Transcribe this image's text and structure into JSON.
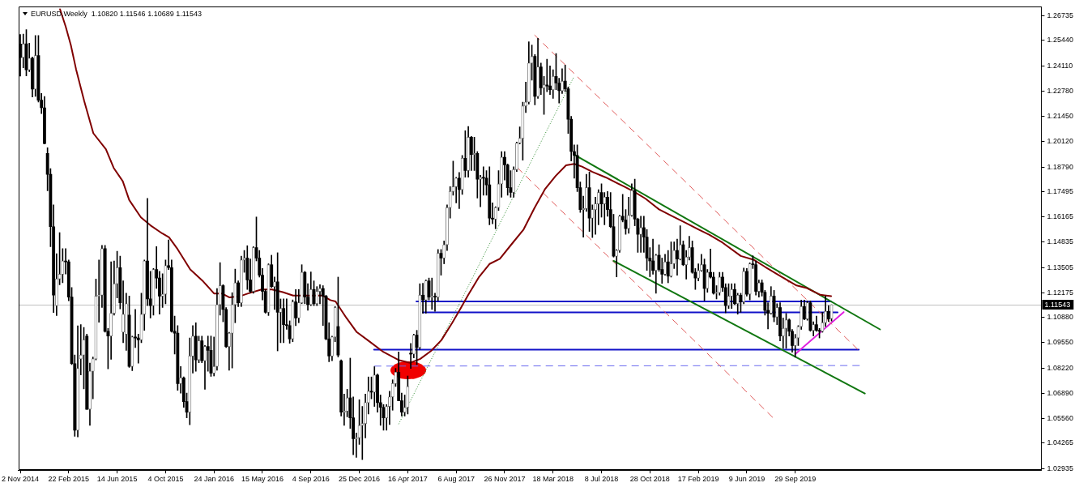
{
  "chart_data": {
    "type": "candlestick",
    "title": "EURUSD,Weekly  1.10820 1.11546 1.10689 1.11543",
    "x": [
      "2014-11-02",
      "2014-11-09",
      "2014-11-16",
      "2014-11-23",
      "2014-11-30",
      "2014-12-07",
      "2014-12-14",
      "2014-12-21",
      "2014-12-28",
      "2015-01-04",
      "2015-01-11",
      "2015-01-18",
      "2015-01-25",
      "2015-02-01",
      "2015-02-08",
      "2015-02-15",
      "2015-02-22",
      "2015-03-01",
      "2015-03-08",
      "2015-03-15",
      "2015-03-22",
      "2015-03-29",
      "2015-04-05",
      "2015-04-12",
      "2015-04-19",
      "2015-04-26",
      "2015-05-03",
      "2015-05-10",
      "2015-05-17",
      "2015-05-24",
      "2015-05-31",
      "2015-06-07",
      "2015-06-14",
      "2015-06-21",
      "2015-06-28",
      "2015-07-05",
      "2015-07-12",
      "2015-07-19",
      "2015-07-26",
      "2015-08-02",
      "2015-08-09",
      "2015-08-16",
      "2015-08-23",
      "2015-08-30",
      "2015-09-06",
      "2015-09-13",
      "2015-09-20",
      "2015-09-27",
      "2015-10-04",
      "2015-10-11",
      "2015-10-18",
      "2015-10-25",
      "2015-11-01",
      "2015-11-08",
      "2015-11-15",
      "2015-11-22",
      "2015-11-29",
      "2015-12-06",
      "2015-12-13",
      "2015-12-20",
      "2015-12-27",
      "2016-01-03",
      "2016-01-10",
      "2016-01-17",
      "2016-01-24",
      "2016-01-31",
      "2016-02-07",
      "2016-02-14",
      "2016-02-21",
      "2016-02-28",
      "2016-03-06",
      "2016-03-13",
      "2016-03-20",
      "2016-03-27",
      "2016-04-03",
      "2016-04-10",
      "2016-04-17",
      "2016-04-24",
      "2016-05-01",
      "2016-05-08",
      "2016-05-15",
      "2016-05-22",
      "2016-05-29",
      "2016-06-05",
      "2016-06-12",
      "2016-06-19",
      "2016-06-26",
      "2016-07-03",
      "2016-07-10",
      "2016-07-17",
      "2016-07-24",
      "2016-07-31",
      "2016-08-07",
      "2016-08-14",
      "2016-08-21",
      "2016-08-28",
      "2016-09-04",
      "2016-09-11",
      "2016-09-18",
      "2016-09-25",
      "2016-10-02",
      "2016-10-09",
      "2016-10-16",
      "2016-10-23",
      "2016-10-30",
      "2016-11-06",
      "2016-11-13",
      "2016-11-20",
      "2016-11-27",
      "2016-12-04",
      "2016-12-11",
      "2016-12-18",
      "2016-12-25",
      "2017-01-01",
      "2017-01-08",
      "2017-01-15",
      "2017-01-22",
      "2017-01-29",
      "2017-02-05",
      "2017-02-12",
      "2017-02-19",
      "2017-02-26",
      "2017-03-05",
      "2017-03-12",
      "2017-03-19",
      "2017-03-26",
      "2017-04-02",
      "2017-04-09",
      "2017-04-16",
      "2017-04-23",
      "2017-04-30",
      "2017-05-07",
      "2017-05-14",
      "2017-05-21",
      "2017-05-28",
      "2017-06-04",
      "2017-06-11",
      "2017-06-18",
      "2017-06-25",
      "2017-07-02",
      "2017-07-09",
      "2017-07-16",
      "2017-07-23",
      "2017-07-30",
      "2017-08-06",
      "2017-08-13",
      "2017-08-20",
      "2017-08-27",
      "2017-09-03",
      "2017-09-10",
      "2017-09-17",
      "2017-09-24",
      "2017-10-01",
      "2017-10-08",
      "2017-10-15",
      "2017-10-22",
      "2017-10-29",
      "2017-11-05",
      "2017-11-12",
      "2017-11-19",
      "2017-11-26",
      "2017-12-03",
      "2017-12-10",
      "2017-12-17",
      "2017-12-24",
      "2017-12-31",
      "2018-01-07",
      "2018-01-14",
      "2018-01-21",
      "2018-01-28",
      "2018-02-04",
      "2018-02-11",
      "2018-02-18",
      "2018-02-25",
      "2018-03-04",
      "2018-03-11",
      "2018-03-18",
      "2018-03-25",
      "2018-04-01",
      "2018-04-08",
      "2018-04-15",
      "2018-04-22",
      "2018-04-29",
      "2018-05-06",
      "2018-05-13",
      "2018-05-20",
      "2018-05-27",
      "2018-06-03",
      "2018-06-10",
      "2018-06-17",
      "2018-06-24",
      "2018-07-01",
      "2018-07-08",
      "2018-07-15",
      "2018-07-22",
      "2018-07-29",
      "2018-08-05",
      "2018-08-12",
      "2018-08-19",
      "2018-08-26",
      "2018-09-02",
      "2018-09-09",
      "2018-09-16",
      "2018-09-23",
      "2018-09-30",
      "2018-10-07",
      "2018-10-14",
      "2018-10-21",
      "2018-10-28",
      "2018-11-04",
      "2018-11-11",
      "2018-11-18",
      "2018-11-25",
      "2018-12-02",
      "2018-12-09",
      "2018-12-16",
      "2018-12-23",
      "2018-12-30",
      "2019-01-06",
      "2019-01-13",
      "2019-01-20",
      "2019-01-27",
      "2019-02-03",
      "2019-02-10",
      "2019-02-17",
      "2019-02-24",
      "2019-03-03",
      "2019-03-10",
      "2019-03-17",
      "2019-03-24",
      "2019-03-31",
      "2019-04-07",
      "2019-04-14",
      "2019-04-21",
      "2019-04-28",
      "2019-05-05",
      "2019-05-12",
      "2019-05-19",
      "2019-05-26",
      "2019-06-02",
      "2019-06-09",
      "2019-06-16",
      "2019-06-23",
      "2019-06-30",
      "2019-07-07",
      "2019-07-14",
      "2019-07-21",
      "2019-07-28",
      "2019-08-04",
      "2019-08-11",
      "2019-08-18",
      "2019-08-25",
      "2019-09-01",
      "2019-09-08",
      "2019-09-15",
      "2019-09-22",
      "2019-09-29",
      "2019-10-06",
      "2019-10-13",
      "2019-10-20",
      "2019-10-27",
      "2019-11-03",
      "2019-11-10",
      "2019-11-17",
      "2019-11-24",
      "2019-12-01",
      "2019-12-08",
      "2019-12-15",
      "2019-12-22"
    ],
    "ohlc": [
      [
        1.2525,
        1.2575,
        1.2357,
        1.2455
      ],
      [
        1.2455,
        1.2577,
        1.24,
        1.2526
      ],
      [
        1.2526,
        1.2601,
        1.2358,
        1.239
      ],
      [
        1.239,
        1.253,
        1.238,
        1.2451
      ],
      [
        1.2451,
        1.2457,
        1.2247,
        1.2288
      ],
      [
        1.2288,
        1.257,
        1.225,
        1.2465
      ],
      [
        1.2465,
        1.257,
        1.222,
        1.223
      ],
      [
        1.223,
        1.2265,
        1.216,
        1.219
      ],
      [
        1.219,
        1.225,
        1.2,
        1.2002
      ],
      [
        1.195,
        1.198,
        1.1754,
        1.184
      ],
      [
        1.184,
        1.187,
        1.146,
        1.1565
      ],
      [
        1.1565,
        1.168,
        1.1114,
        1.1205
      ],
      [
        1.115,
        1.1423,
        1.1098,
        1.129
      ],
      [
        1.129,
        1.1534,
        1.126,
        1.1315
      ],
      [
        1.1315,
        1.145,
        1.127,
        1.1385
      ],
      [
        1.1385,
        1.145,
        1.1316,
        1.138
      ],
      [
        1.138,
        1.139,
        1.1175,
        1.1195
      ],
      [
        1.1195,
        1.1245,
        1.084,
        1.0845
      ],
      [
        1.0845,
        1.089,
        1.0463,
        1.0495
      ],
      [
        1.0495,
        1.1044,
        1.046,
        1.082
      ],
      [
        1.087,
        1.105,
        1.0786,
        1.089
      ],
      [
        1.089,
        1.1035,
        1.0712,
        1.097
      ],
      [
        1.099,
        1.1,
        1.0605,
        1.0605
      ],
      [
        1.0605,
        1.0848,
        1.052,
        1.0805
      ],
      [
        1.0805,
        1.088,
        1.066,
        1.087
      ],
      [
        1.087,
        1.129,
        1.0865,
        1.12
      ],
      [
        1.12,
        1.139,
        1.1063,
        1.1205
      ],
      [
        1.1205,
        1.1467,
        1.114,
        1.145
      ],
      [
        1.145,
        1.1467,
        1.101,
        1.1015
      ],
      [
        1.1015,
        1.103,
        1.0818,
        1.099
      ],
      [
        1.099,
        1.138,
        1.0868,
        1.111
      ],
      [
        1.111,
        1.1385,
        1.11,
        1.1265
      ],
      [
        1.1265,
        1.1436,
        1.119,
        1.135
      ],
      [
        1.135,
        1.141,
        1.1133,
        1.1165
      ],
      [
        1.101,
        1.128,
        1.0955,
        1.1105
      ],
      [
        1.1,
        1.1215,
        1.0915,
        1.116
      ],
      [
        1.11,
        1.12,
        1.0825,
        1.083
      ],
      [
        1.083,
        1.099,
        1.0808,
        1.0985
      ],
      [
        1.0985,
        1.113,
        1.093,
        1.098
      ],
      [
        1.098,
        1.1,
        1.0848,
        1.097
      ],
      [
        1.097,
        1.1215,
        1.0955,
        1.1105
      ],
      [
        1.1105,
        1.139,
        1.102,
        1.1385
      ],
      [
        1.1385,
        1.1714,
        1.115,
        1.1185
      ],
      [
        1.1185,
        1.133,
        1.1085,
        1.115
      ],
      [
        1.115,
        1.1345,
        1.11,
        1.134
      ],
      [
        1.134,
        1.146,
        1.124,
        1.1295
      ],
      [
        1.1295,
        1.133,
        1.1105,
        1.12
      ],
      [
        1.12,
        1.1318,
        1.114,
        1.121
      ],
      [
        1.121,
        1.139,
        1.116,
        1.136
      ],
      [
        1.136,
        1.1495,
        1.134,
        1.135
      ],
      [
        1.135,
        1.139,
        1.101,
        1.1015
      ],
      [
        1.1015,
        1.1095,
        1.0895,
        1.1005
      ],
      [
        1.1005,
        1.1045,
        1.0705,
        1.074
      ],
      [
        1.074,
        1.083,
        1.069,
        1.077
      ],
      [
        1.077,
        1.0775,
        1.0615,
        1.0645
      ],
      [
        1.0645,
        1.069,
        1.056,
        1.059
      ],
      [
        1.059,
        1.098,
        1.0524,
        1.0885
      ],
      [
        1.0885,
        1.1045,
        1.0795,
        1.099
      ],
      [
        1.099,
        1.106,
        1.0805,
        1.0865
      ],
      [
        1.0865,
        1.099,
        1.085,
        1.0965
      ],
      [
        1.0965,
        1.099,
        1.085,
        1.086
      ],
      [
        1.086,
        1.094,
        1.071,
        1.0935
      ],
      [
        1.0935,
        1.099,
        1.0805,
        1.0915
      ],
      [
        1.0915,
        1.099,
        1.0778,
        1.0795
      ],
      [
        1.0795,
        1.0985,
        1.078,
        1.083
      ],
      [
        1.083,
        1.124,
        1.081,
        1.1155
      ],
      [
        1.1155,
        1.1376,
        1.11,
        1.1255
      ],
      [
        1.1255,
        1.126,
        1.1065,
        1.113
      ],
      [
        1.113,
        1.114,
        1.093,
        1.0935
      ],
      [
        1.0935,
        1.101,
        1.081,
        1.1005
      ],
      [
        1.1005,
        1.1218,
        1.0822,
        1.1155
      ],
      [
        1.1155,
        1.1342,
        1.106,
        1.127
      ],
      [
        1.127,
        1.128,
        1.1145,
        1.1165
      ],
      [
        1.1165,
        1.141,
        1.1145,
        1.139
      ],
      [
        1.139,
        1.144,
        1.1325,
        1.14
      ],
      [
        1.14,
        1.1465,
        1.1235,
        1.1285
      ],
      [
        1.1285,
        1.1395,
        1.1218,
        1.1225
      ],
      [
        1.1225,
        1.146,
        1.1215,
        1.1455
      ],
      [
        1.1455,
        1.1616,
        1.1385,
        1.14
      ],
      [
        1.14,
        1.144,
        1.13,
        1.131
      ],
      [
        1.131,
        1.1345,
        1.118,
        1.1225
      ],
      [
        1.1225,
        1.1235,
        1.111,
        1.1115
      ],
      [
        1.1115,
        1.137,
        1.1098,
        1.1365
      ],
      [
        1.1365,
        1.1415,
        1.1245,
        1.125
      ],
      [
        1.125,
        1.13,
        1.113,
        1.1275
      ],
      [
        1.1275,
        1.1428,
        1.0912,
        1.1115
      ],
      [
        1.1115,
        1.1185,
        1.0955,
        1.1135
      ],
      [
        1.1135,
        1.1185,
        1.0955,
        1.105
      ],
      [
        1.105,
        1.1185,
        1.1025,
        1.1045
      ],
      [
        1.1045,
        1.107,
        1.0952,
        1.0975
      ],
      [
        1.0975,
        1.118,
        1.096,
        1.117
      ],
      [
        1.117,
        1.1235,
        1.1045,
        1.1085
      ],
      [
        1.1085,
        1.1235,
        1.106,
        1.1165
      ],
      [
        1.1165,
        1.1365,
        1.116,
        1.1325
      ],
      [
        1.1325,
        1.133,
        1.116,
        1.1195
      ],
      [
        1.1195,
        1.1265,
        1.1125,
        1.1155
      ],
      [
        1.1155,
        1.1327,
        1.115,
        1.1235
      ],
      [
        1.1235,
        1.128,
        1.115,
        1.116
      ],
      [
        1.116,
        1.125,
        1.115,
        1.1225
      ],
      [
        1.1225,
        1.126,
        1.116,
        1.124
      ],
      [
        1.124,
        1.1255,
        1.1045,
        1.12
      ],
      [
        1.12,
        1.1205,
        1.097,
        1.0975
      ],
      [
        1.0975,
        1.106,
        1.0855,
        1.0885
      ],
      [
        1.0885,
        1.099,
        1.086,
        1.0985
      ],
      [
        1.0985,
        1.1145,
        1.096,
        1.114
      ],
      [
        1.104,
        1.13,
        1.088,
        1.089
      ],
      [
        1.086,
        1.0865,
        1.057,
        1.059
      ],
      [
        1.059,
        1.0685,
        1.052,
        1.0595
      ],
      [
        1.0595,
        1.071,
        1.0565,
        1.0665
      ],
      [
        1.0665,
        1.0874,
        1.0505,
        1.056
      ],
      [
        1.056,
        1.067,
        1.0366,
        1.045
      ],
      [
        1.045,
        1.048,
        1.0352,
        1.0455
      ],
      [
        1.0455,
        1.0655,
        1.042,
        1.052
      ],
      [
        1.052,
        1.062,
        1.034,
        1.053
      ],
      [
        1.053,
        1.0685,
        1.0455,
        1.064
      ],
      [
        1.064,
        1.0775,
        1.058,
        1.07
      ],
      [
        1.07,
        1.0775,
        1.066,
        1.0695
      ],
      [
        1.0695,
        1.0829,
        1.062,
        1.0785
      ],
      [
        1.0785,
        1.079,
        1.059,
        1.064
      ],
      [
        1.064,
        1.068,
        1.052,
        1.0615
      ],
      [
        1.0615,
        1.063,
        1.0495,
        1.056
      ],
      [
        1.056,
        1.063,
        1.0495,
        1.062
      ],
      [
        1.062,
        1.07,
        1.0525,
        1.067
      ],
      [
        1.067,
        1.076,
        1.06,
        1.074
      ],
      [
        1.074,
        1.082,
        1.0725,
        1.08
      ],
      [
        1.08,
        1.0906,
        1.065,
        1.065
      ],
      [
        1.065,
        1.069,
        1.057,
        1.059
      ],
      [
        1.059,
        1.068,
        1.057,
        1.0615
      ],
      [
        1.0615,
        1.078,
        1.058,
        1.0725
      ],
      [
        1.09,
        1.0951,
        1.082,
        1.0895
      ],
      [
        1.0895,
        1.1,
        1.0875,
        1.0995
      ],
      [
        1.0995,
        1.102,
        1.084,
        1.093
      ],
      [
        1.093,
        1.1265,
        1.092,
        1.1205
      ],
      [
        1.1205,
        1.1268,
        1.111,
        1.118
      ],
      [
        1.118,
        1.1285,
        1.111,
        1.128
      ],
      [
        1.128,
        1.1295,
        1.118,
        1.1195
      ],
      [
        1.1195,
        1.1295,
        1.113,
        1.1198
      ],
      [
        1.1198,
        1.1215,
        1.112,
        1.1195
      ],
      [
        1.1195,
        1.1445,
        1.1175,
        1.1425
      ],
      [
        1.1425,
        1.1445,
        1.131,
        1.14
      ],
      [
        1.14,
        1.149,
        1.137,
        1.147
      ],
      [
        1.147,
        1.168,
        1.144,
        1.1665
      ],
      [
        1.1665,
        1.1775,
        1.161,
        1.175
      ],
      [
        1.175,
        1.191,
        1.173,
        1.1775
      ],
      [
        1.1775,
        1.1825,
        1.169,
        1.182
      ],
      [
        1.182,
        1.185,
        1.166,
        1.176
      ],
      [
        1.176,
        1.194,
        1.1735,
        1.1925
      ],
      [
        1.1925,
        1.207,
        1.1825,
        1.186
      ],
      [
        1.186,
        1.2092,
        1.1825,
        1.2035
      ],
      [
        1.2035,
        1.204,
        1.186,
        1.1945
      ],
      [
        1.1945,
        1.2035,
        1.186,
        1.195
      ],
      [
        1.195,
        1.196,
        1.1715,
        1.1815
      ],
      [
        1.1815,
        1.1835,
        1.167,
        1.1825
      ],
      [
        1.1825,
        1.188,
        1.173,
        1.182
      ],
      [
        1.182,
        1.186,
        1.173,
        1.1785
      ],
      [
        1.1785,
        1.188,
        1.1575,
        1.161
      ],
      [
        1.161,
        1.169,
        1.158,
        1.1605
      ],
      [
        1.1605,
        1.167,
        1.1554,
        1.1665
      ],
      [
        1.1665,
        1.186,
        1.165,
        1.179
      ],
      [
        1.179,
        1.196,
        1.172,
        1.193
      ],
      [
        1.193,
        1.196,
        1.181,
        1.189
      ],
      [
        1.189,
        1.1895,
        1.173,
        1.177
      ],
      [
        1.177,
        1.186,
        1.172,
        1.1745
      ],
      [
        1.1745,
        1.188,
        1.172,
        1.1865
      ],
      [
        1.1865,
        1.201,
        1.1855,
        1.2005
      ],
      [
        1.2005,
        1.209,
        1.2,
        1.203
      ],
      [
        1.203,
        1.222,
        1.1915,
        1.22
      ],
      [
        1.22,
        1.2325,
        1.2165,
        1.222
      ],
      [
        1.222,
        1.2537,
        1.221,
        1.2425
      ],
      [
        1.2425,
        1.252,
        1.2335,
        1.246
      ],
      [
        1.246,
        1.247,
        1.2205,
        1.225
      ],
      [
        1.225,
        1.2555,
        1.224,
        1.2405
      ],
      [
        1.2405,
        1.2425,
        1.226,
        1.2295
      ],
      [
        1.2295,
        1.2355,
        1.2155,
        1.231
      ],
      [
        1.231,
        1.2445,
        1.2275,
        1.2305
      ],
      [
        1.2305,
        1.241,
        1.226,
        1.2285
      ],
      [
        1.2285,
        1.239,
        1.224,
        1.2355
      ],
      [
        1.2355,
        1.2475,
        1.2285,
        1.232
      ],
      [
        1.232,
        1.2345,
        1.2215,
        1.228
      ],
      [
        1.228,
        1.2395,
        1.2265,
        1.233
      ],
      [
        1.233,
        1.2415,
        1.2275,
        1.229
      ],
      [
        1.229,
        1.23,
        1.2055,
        1.213
      ],
      [
        1.213,
        1.2145,
        1.191,
        1.196
      ],
      [
        1.196,
        1.1995,
        1.182,
        1.194
      ],
      [
        1.194,
        1.1995,
        1.175,
        1.177
      ],
      [
        1.177,
        1.18,
        1.164,
        1.1655
      ],
      [
        1.1655,
        1.1725,
        1.151,
        1.166
      ],
      [
        1.166,
        1.184,
        1.1645,
        1.177
      ],
      [
        1.177,
        1.1852,
        1.154,
        1.161
      ],
      [
        1.161,
        1.168,
        1.1508,
        1.1655
      ],
      [
        1.1655,
        1.172,
        1.1525,
        1.1685
      ],
      [
        1.1685,
        1.176,
        1.1575,
        1.1745
      ],
      [
        1.1745,
        1.179,
        1.1615,
        1.1685
      ],
      [
        1.1685,
        1.1745,
        1.1575,
        1.172
      ],
      [
        1.172,
        1.175,
        1.162,
        1.1655
      ],
      [
        1.1655,
        1.1745,
        1.156,
        1.1565
      ],
      [
        1.1565,
        1.163,
        1.1405,
        1.141
      ],
      [
        1.141,
        1.1445,
        1.1301,
        1.144
      ],
      [
        1.144,
        1.1625,
        1.143,
        1.162
      ],
      [
        1.162,
        1.1735,
        1.159,
        1.16
      ],
      [
        1.16,
        1.1655,
        1.1525,
        1.1555
      ],
      [
        1.1555,
        1.172,
        1.153,
        1.1625
      ],
      [
        1.1625,
        1.179,
        1.162,
        1.1755
      ],
      [
        1.1755,
        1.1815,
        1.157,
        1.1605
      ],
      [
        1.1605,
        1.161,
        1.143,
        1.1525
      ],
      [
        1.1525,
        1.162,
        1.143,
        1.156
      ],
      [
        1.156,
        1.162,
        1.143,
        1.151
      ],
      [
        1.151,
        1.155,
        1.1335,
        1.14
      ],
      [
        1.14,
        1.1455,
        1.1302,
        1.1385
      ],
      [
        1.1385,
        1.15,
        1.1315,
        1.1335
      ],
      [
        1.1335,
        1.142,
        1.1215,
        1.1415
      ],
      [
        1.1415,
        1.147,
        1.133,
        1.134
      ],
      [
        1.134,
        1.14,
        1.1267,
        1.1315
      ],
      [
        1.1315,
        1.142,
        1.131,
        1.138
      ],
      [
        1.138,
        1.144,
        1.127,
        1.1305
      ],
      [
        1.1305,
        1.1485,
        1.13,
        1.137
      ],
      [
        1.137,
        1.1485,
        1.1345,
        1.144
      ],
      [
        1.144,
        1.15,
        1.131,
        1.1395
      ],
      [
        1.1395,
        1.157,
        1.139,
        1.147
      ],
      [
        1.147,
        1.149,
        1.136,
        1.1365
      ],
      [
        1.1365,
        1.144,
        1.129,
        1.1405
      ],
      [
        1.1405,
        1.1515,
        1.139,
        1.1455
      ],
      [
        1.1455,
        1.149,
        1.132,
        1.1325
      ],
      [
        1.1325,
        1.1345,
        1.1235,
        1.1295
      ],
      [
        1.1295,
        1.137,
        1.128,
        1.1335
      ],
      [
        1.1335,
        1.142,
        1.133,
        1.1365
      ],
      [
        1.1365,
        1.1395,
        1.1176,
        1.124
      ],
      [
        1.124,
        1.134,
        1.122,
        1.1325
      ],
      [
        1.1325,
        1.1448,
        1.1295,
        1.13
      ],
      [
        1.13,
        1.1325,
        1.121,
        1.1215
      ],
      [
        1.1215,
        1.1255,
        1.1185,
        1.1218
      ],
      [
        1.1218,
        1.1325,
        1.1205,
        1.13
      ],
      [
        1.13,
        1.1325,
        1.1225,
        1.1245
      ],
      [
        1.1245,
        1.1265,
        1.1112,
        1.115
      ],
      [
        1.115,
        1.1265,
        1.1135,
        1.12
      ],
      [
        1.12,
        1.1265,
        1.1135,
        1.1235
      ],
      [
        1.1235,
        1.1265,
        1.1155,
        1.116
      ],
      [
        1.116,
        1.1215,
        1.1105,
        1.1205
      ],
      [
        1.1205,
        1.1215,
        1.1115,
        1.117
      ],
      [
        1.117,
        1.1347,
        1.116,
        1.133
      ],
      [
        1.133,
        1.1345,
        1.12,
        1.121
      ],
      [
        1.121,
        1.1375,
        1.118,
        1.137
      ],
      [
        1.137,
        1.1412,
        1.1345,
        1.1365
      ],
      [
        1.1365,
        1.1385,
        1.1205,
        1.1225
      ],
      [
        1.1225,
        1.1285,
        1.1195,
        1.127
      ],
      [
        1.127,
        1.1285,
        1.12,
        1.122
      ],
      [
        1.122,
        1.123,
        1.11,
        1.1125
      ],
      [
        1.1125,
        1.1165,
        1.1027,
        1.111
      ],
      [
        1.111,
        1.125,
        1.1105,
        1.12
      ],
      [
        1.12,
        1.123,
        1.1065,
        1.109
      ],
      [
        1.109,
        1.116,
        1.105,
        1.114
      ],
      [
        1.114,
        1.1165,
        1.0965,
        1.099
      ],
      [
        1.099,
        1.1085,
        1.0925,
        1.103
      ],
      [
        1.103,
        1.1109,
        1.0925,
        1.1075
      ],
      [
        1.1075,
        1.108,
        1.099,
        1.1015
      ],
      [
        1.1015,
        1.1025,
        1.0905,
        1.094
      ],
      [
        1.094,
        1.0999,
        1.0879,
        1.098
      ],
      [
        1.098,
        1.1045,
        1.094,
        1.104
      ],
      [
        1.104,
        1.1179,
        1.1025,
        1.1145
      ],
      [
        1.1145,
        1.1179,
        1.1075,
        1.108
      ],
      [
        1.108,
        1.1175,
        1.1073,
        1.1165
      ],
      [
        1.1165,
        1.1175,
        1.1015,
        1.102
      ],
      [
        1.102,
        1.1065,
        1.099,
        1.105
      ],
      [
        1.105,
        1.1095,
        1.1015,
        1.102
      ],
      [
        1.102,
        1.103,
        1.098,
        1.1015
      ],
      [
        1.1015,
        1.1115,
        1.101,
        1.106
      ],
      [
        1.106,
        1.12,
        1.104,
        1.112
      ],
      [
        1.112,
        1.115,
        1.1066,
        1.108
      ],
      [
        1.1082,
        1.11546,
        1.10689,
        1.11543
      ]
    ],
    "series": [
      {
        "type": "line",
        "color": "#800000",
        "line_style": "solid",
        "x": [
          "2015-02-02",
          "2015-02-15",
          "2015-02-27",
          "2015-03-11",
          "2015-03-30",
          "2015-04-20",
          "2015-05-19",
          "2015-06-06",
          "2015-06-27",
          "2015-07-12",
          "2015-08-08",
          "2015-08-30",
          "2015-09-26",
          "2015-10-12",
          "2015-10-30",
          "2015-11-30",
          "2015-12-30",
          "2016-01-24",
          "2016-02-11",
          "2016-02-29",
          "2016-03-25",
          "2016-04-12",
          "2016-05-13",
          "2016-06-06",
          "2016-07-01",
          "2016-07-25",
          "2016-08-31",
          "2016-10-01",
          "2016-10-19",
          "2016-10-31",
          "2016-11-25",
          "2016-12-19",
          "2017-01-13",
          "2017-02-19",
          "2017-03-27",
          "2017-04-21",
          "2017-05-15",
          "2017-06-09",
          "2017-07-03",
          "2017-07-28",
          "2017-08-15",
          "2017-09-03",
          "2017-09-27",
          "2017-10-22",
          "2017-11-15",
          "2017-12-10",
          "2018-01-09",
          "2018-02-03",
          "2018-02-27",
          "2018-03-24",
          "2018-04-17",
          "2018-05-06",
          "2018-05-24",
          "2018-06-17",
          "2018-07-18",
          "2018-08-30",
          "2018-09-23",
          "2018-10-18",
          "2018-11-18",
          "2018-12-18",
          "2019-01-18",
          "2019-02-17",
          "2019-03-14",
          "2019-04-14",
          "2019-05-26",
          "2019-06-26",
          "2019-07-21",
          "2019-08-26",
          "2019-10-02",
          "2019-10-26",
          "2019-11-26",
          "2019-12-21"
        ],
        "values": [
          1.2708,
          1.2617,
          1.2519,
          1.2393,
          1.2224,
          1.2056,
          1.1972,
          1.1874,
          1.1804,
          1.1705,
          1.1614,
          1.1572,
          1.153,
          1.1509,
          1.1453,
          1.134,
          1.1277,
          1.1214,
          1.1214,
          1.1193,
          1.12,
          1.1214,
          1.1235,
          1.1235,
          1.1221,
          1.1203,
          1.1203,
          1.1203,
          1.1179,
          1.1172,
          1.1086,
          1.1011,
          1.0969,
          1.0906,
          1.0863,
          1.0849,
          1.087,
          1.0912,
          1.0969,
          1.106,
          1.113,
          1.1207,
          1.1298,
          1.1369,
          1.1396,
          1.1467,
          1.1551,
          1.1663,
          1.1761,
          1.1832,
          1.1888,
          1.1895,
          1.1881,
          1.1853,
          1.1824,
          1.1775,
          1.1747,
          1.1712,
          1.1656,
          1.1621,
          1.1586,
          1.1551,
          1.1523,
          1.1481,
          1.1411,
          1.139,
          1.1354,
          1.1305,
          1.1256,
          1.1242,
          1.1207,
          1.12
        ]
      },
      {
        "type": "line",
        "color": "#117711",
        "line_style": "solid",
        "x": [
          "2018-05-06",
          "2020-04-12"
        ],
        "values": [
          1.1944,
          1.1025
        ]
      },
      {
        "type": "line",
        "color": "#117711",
        "line_style": "solid",
        "x": [
          "2018-08-05",
          "2020-03-08"
        ],
        "values": [
          1.1385,
          1.0688
        ]
      },
      {
        "type": "line",
        "color": "#e05a5a",
        "line_style": "dashed",
        "x": [
          "2018-02-03",
          "2020-02-21"
        ],
        "values": [
          1.2573,
          1.0919
        ]
      },
      {
        "type": "line",
        "color": "#e05a5a",
        "line_style": "dashed",
        "x": [
          "2017-12-25",
          "2019-08-08"
        ],
        "values": [
          1.1876,
          1.0562
        ]
      },
      {
        "type": "line",
        "color": "#2e8b2e",
        "line_style": "dotted",
        "x": [
          "2017-03-26",
          "2018-05-04"
        ],
        "values": [
          1.0527,
          1.2348
        ]
      },
      {
        "type": "line",
        "color": "#e020e0",
        "line_style": "solid",
        "x": [
          "2019-09-29",
          "2020-01-19"
        ],
        "values": [
          1.0895,
          1.1116
        ]
      },
      {
        "type": "line",
        "color": "#1010c8",
        "line_style": "solid",
        "x": [
          "2017-05-06",
          "2019-12-21"
        ],
        "values": [
          1.1172,
          1.1172
        ]
      },
      {
        "type": "line",
        "color": "#1010c8",
        "line_style": "solid",
        "x": [
          "2017-05-21",
          "2020-01-05"
        ],
        "values": [
          1.1114,
          1.1114
        ]
      },
      {
        "type": "line",
        "color": "#1010c8",
        "line_style": "solid",
        "x": [
          "2017-01-28",
          "2020-02-23"
        ],
        "values": [
          1.0918,
          1.0918
        ]
      },
      {
        "type": "line",
        "color": "#6b6bf0",
        "line_style": "dashed",
        "x": [
          "2017-01-28",
          "2020-02-25"
        ],
        "values": [
          1.0832,
          1.0835
        ]
      }
    ],
    "xlim": [
      "2014-10-29",
      "2021-04-20"
    ],
    "xticks": [
      {
        "value": "2014-11-02",
        "label": "2 Nov 2014"
      },
      {
        "value": "2015-02-22",
        "label": "22 Feb 2015"
      },
      {
        "value": "2015-06-14",
        "label": "14 Jun 2015"
      },
      {
        "value": "2015-10-04",
        "label": "4 Oct 2015"
      },
      {
        "value": "2016-01-24",
        "label": "24 Jan 2016"
      },
      {
        "value": "2016-05-15",
        "label": "15 May 2016"
      },
      {
        "value": "2016-09-04",
        "label": "4 Sep 2016"
      },
      {
        "value": "2016-12-25",
        "label": "25 Dec 2016"
      },
      {
        "value": "2017-04-16",
        "label": "16 Apr 2017"
      },
      {
        "value": "2017-08-06",
        "label": "6 Aug 2017"
      },
      {
        "value": "2017-11-26",
        "label": "26 Nov 2017"
      },
      {
        "value": "2018-03-18",
        "label": "18 Mar 2018"
      },
      {
        "value": "2018-07-08",
        "label": "8 Jul 2018"
      },
      {
        "value": "2018-10-28",
        "label": "28 Oct 2018"
      },
      {
        "value": "2019-02-17",
        "label": "17 Feb 2019"
      },
      {
        "value": "2019-06-09",
        "label": "9 Jun 2019"
      },
      {
        "value": "2019-09-29",
        "label": "29 Sep 2019"
      }
    ],
    "ylim": [
      1.0285,
      1.2721
    ],
    "yticks": [
      {
        "value": 1.26735,
        "label": "1.26735"
      },
      {
        "value": 1.2544,
        "label": "1.25440"
      },
      {
        "value": 1.2411,
        "label": "1.24110"
      },
      {
        "value": 1.2278,
        "label": "1.22780"
      },
      {
        "value": 1.2145,
        "label": "1.21450"
      },
      {
        "value": 1.2012,
        "label": "1.20120"
      },
      {
        "value": 1.1879,
        "label": "1.18790"
      },
      {
        "value": 1.17495,
        "label": "1.17495"
      },
      {
        "value": 1.16165,
        "label": "1.16165"
      },
      {
        "value": 1.14835,
        "label": "1.14835"
      },
      {
        "value": 1.13505,
        "label": "1.13505"
      },
      {
        "value": 1.12175,
        "label": "1.12175"
      },
      {
        "value": 1.1088,
        "label": "1.10880"
      },
      {
        "value": 1.0955,
        "label": "1.09550"
      },
      {
        "value": 1.0822,
        "label": "1.08220"
      },
      {
        "value": 1.0689,
        "label": "1.06890"
      },
      {
        "value": 1.0556,
        "label": "1.05560"
      },
      {
        "value": 1.04265,
        "label": "1.04265"
      },
      {
        "value": 1.02935,
        "label": "1.02935"
      }
    ],
    "ref_lines": [
      {
        "axis": "y",
        "value": 1.11543,
        "label": "1.11543",
        "color": "#c0c0c0"
      }
    ]
  }
}
